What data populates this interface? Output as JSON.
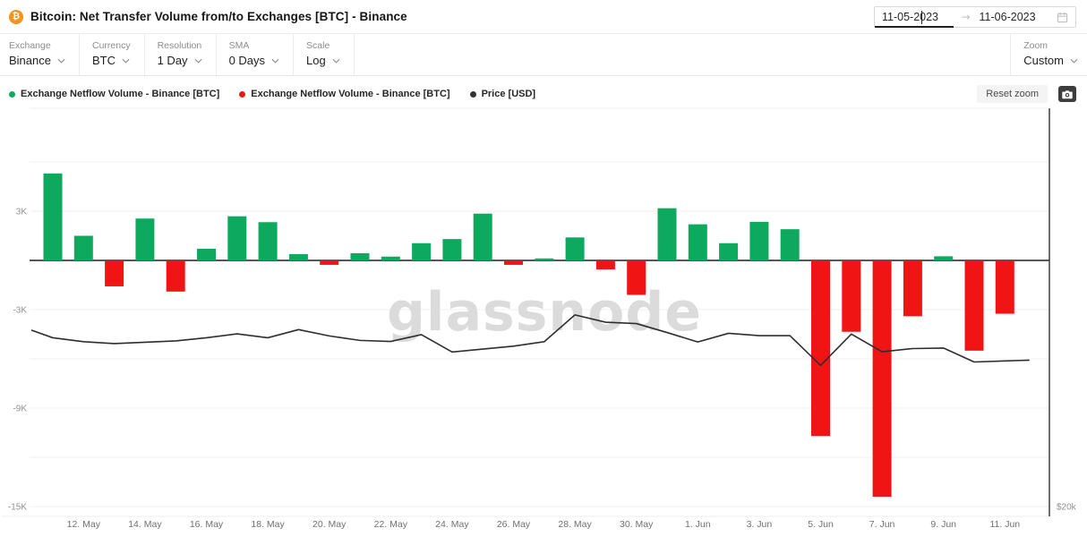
{
  "header": {
    "title": "Bitcoin: Net Transfer Volume from/to Exchanges [BTC] - Binance",
    "title_icon": "bitcoin",
    "date_range": {
      "start": "11-05-2023",
      "end": "11-06-2023",
      "separator": "→"
    }
  },
  "toolbar": {
    "controls": [
      {
        "label": "Exchange",
        "value": "Binance"
      },
      {
        "label": "Currency",
        "value": "BTC"
      },
      {
        "label": "Resolution",
        "value": "1 Day"
      },
      {
        "label": "SMA",
        "value": "0 Days"
      },
      {
        "label": "Scale",
        "value": "Log"
      }
    ],
    "zoom": {
      "label": "Zoom",
      "value": "Custom"
    }
  },
  "chart_header": {
    "legend": [
      {
        "label": "Exchange Netflow Volume - Binance [BTC]",
        "color": "#0DA95E"
      },
      {
        "label": "Exchange Netflow Volume - Binance [BTC]",
        "color": "#F01414"
      },
      {
        "label": "Price [USD]",
        "color": "#333333"
      }
    ],
    "reset_zoom_label": "Reset zoom",
    "screenshot_icon": "camera"
  },
  "watermark": "glassnode",
  "colors": {
    "positive_bar": "#0DA95E",
    "negative_bar": "#F01414",
    "price_line": "#2E2E30",
    "grid": "#F1F1F1",
    "border": "#ECECEC",
    "zero_axis": "#55565A",
    "right_axis": "#3F3F3F",
    "y_tick_text": "#909090",
    "x_tick_text": "#707070",
    "watermark": "#DBDBDB",
    "brand_orange": "#F7931A"
  },
  "chart_data": {
    "type": "combo",
    "title": "Bitcoin: Net Transfer Volume from/to Exchanges [BTC] - Binance",
    "categories": [
      "11 May",
      "12 May",
      "13 May",
      "14 May",
      "15 May",
      "16 May",
      "17 May",
      "18 May",
      "19 May",
      "20 May",
      "21 May",
      "22 May",
      "23 May",
      "24 May",
      "25 May",
      "26 May",
      "27 May",
      "28 May",
      "29 May",
      "30 May",
      "31 May",
      "1 Jun",
      "2 Jun",
      "3 Jun",
      "4 Jun",
      "5 Jun",
      "6 Jun",
      "7 Jun",
      "8 Jun",
      "9 Jun",
      "10 Jun",
      "11 Jun"
    ],
    "series": [
      {
        "name": "Exchange Netflow Volume - Binance [BTC]",
        "type": "bar",
        "unit": "BTC",
        "values": [
          5300,
          1500,
          -1580,
          2550,
          -1900,
          710,
          2690,
          2330,
          380,
          -270,
          440,
          230,
          1050,
          1300,
          2850,
          -270,
          120,
          1400,
          -550,
          -2100,
          3180,
          2200,
          1050,
          2350,
          1900,
          -10700,
          -4350,
          -14400,
          -3400,
          250,
          -5500,
          -3250
        ]
      },
      {
        "name": "Price [USD]",
        "type": "line",
        "unit": "USD",
        "x": [
          -0.7,
          0,
          1,
          2,
          3,
          4,
          5,
          6,
          7,
          8,
          9,
          10,
          11,
          12,
          13,
          14,
          15,
          16,
          17,
          18,
          19,
          20,
          21,
          22,
          23,
          24,
          25,
          26,
          27,
          28,
          29,
          30,
          31,
          31.8
        ],
        "values": [
          26700,
          26410,
          26260,
          26190,
          26240,
          26290,
          26410,
          26560,
          26410,
          26720,
          26480,
          26310,
          26270,
          26530,
          25870,
          25980,
          26090,
          26260,
          27280,
          27000,
          26950,
          26610,
          26250,
          26580,
          26490,
          26490,
          25360,
          26550,
          25880,
          26000,
          26020,
          25490,
          25530,
          25560
        ]
      }
    ],
    "x_tick_labels": [
      "12. May",
      "14. May",
      "16. May",
      "18. May",
      "20. May",
      "22. May",
      "24. May",
      "26. May",
      "28. May",
      "30. May",
      "1. Jun",
      "3. Jun",
      "5. Jun",
      "7. Jun",
      "9. Jun",
      "11. Jun"
    ],
    "x_tick_day_indices": [
      1,
      3,
      5,
      7,
      9,
      11,
      13,
      15,
      17,
      19,
      21,
      23,
      25,
      27,
      29,
      31
    ],
    "y_ticks_left": [
      {
        "value": 3000,
        "label": "3K"
      },
      {
        "value": -3000,
        "label": "-3K"
      },
      {
        "value": -9000,
        "label": "-9K"
      },
      {
        "value": -15000,
        "label": "-15K"
      }
    ],
    "gridline_values": [
      6000,
      3000,
      -3000,
      -6000,
      -9000,
      -12000,
      -15000
    ],
    "y_tick_right": {
      "value": 20000,
      "label": "$20k"
    },
    "netflow_ylim": [
      -15380,
      9270
    ],
    "price_ylim": [
      19760,
      35130
    ],
    "scale": "log",
    "grid": true,
    "legend_position": "top-left"
  }
}
